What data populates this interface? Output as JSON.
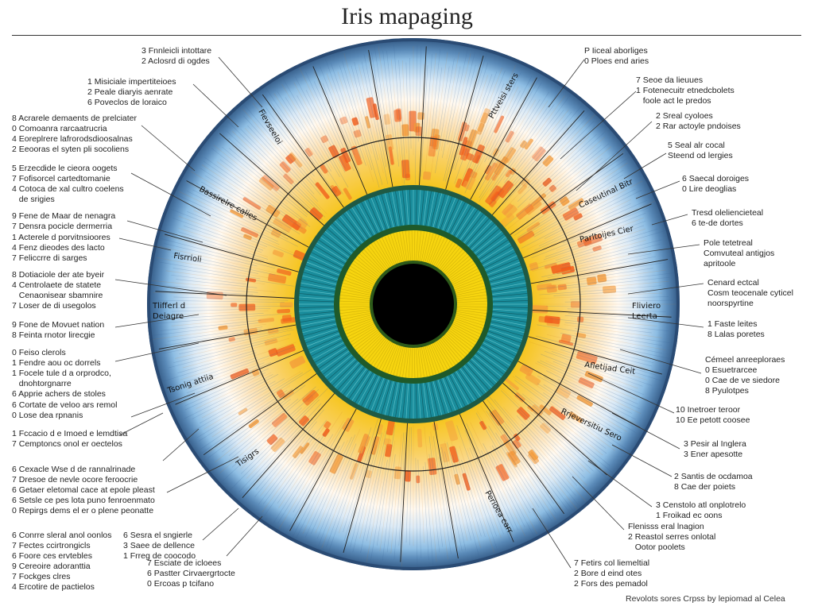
{
  "title": "Iris mapaging",
  "colors": {
    "rim": "#2f5580",
    "outer_band": "#8dbde3",
    "ciliary_zone": "#f7c520",
    "blotch": "#f05a1a",
    "collarette_teal": "#1a8d9c",
    "collarette_dark": "#1f5a2a",
    "inner_ring": "#f6d40f",
    "pupil": "#000000"
  },
  "left_labels": [
    [
      "3 Fnnleicli intottare",
      "2 Aclosrd di ogdes"
    ],
    [
      "1 Misiciale impertiteioes",
      "2 Peale diaryis aenrate",
      "6 Poveclos de loraico"
    ],
    [
      "8 Acrarele demaents de prelciater",
      "0 Comoanra rarcaatrucria",
      "4 Eoreplrere lafrorodsdioosalnas",
      "2 Eeooras el syten pli socoliens"
    ],
    [
      "5 Erzecdide le cieora oogets",
      "7 Fofisorcel cartedtomanie",
      "4 Cotoca de xal cultro coelens",
      "   de srigies"
    ],
    [
      "9 Fene de Maar de nenagra",
      "7 Densra pocicle dermerria"
    ],
    [
      "1 Acterele d porvitnsioores",
      "4 Fenz dieodes des lacto",
      "7 Feliccrre di sarges"
    ],
    [
      "8 Dotiaciole der ate byeir",
      "4 Centrolaete de statete",
      "   Cenaonisear sbamnire",
      "7 Loser de di usegolos"
    ],
    [
      "9 Fone de Movuet nation",
      "8 Feinta rnotor lirecgie"
    ],
    [
      "0 Feiso clerols",
      "1 Fendre aou oc dorrels",
      "1 Focele tule d a orprodco,",
      "   dnohtorgnarre",
      "6 Apprie achers de stoles"
    ],
    [
      "6 Cortate de veloo ars remol",
      "0 Lose dea rpnanis"
    ],
    [
      "1 Fccacio d e Imoed e lemdtisa",
      "7 Cemptoncs onol er oectelos"
    ],
    [
      "6 Cexacle Wse d de rannalrinade",
      "7 Dresoe de nevle ocore feroocrie",
      "6 Getaer eletomal cace at epole pleast",
      "6 Setsle ce pes lota puno fenroenmato",
      "0 Repirgs dems el er o plene peonatte"
    ],
    [
      "6 Conrre sleral anol oonlos",
      "7 Fectes ccirtrongicls",
      "6 Foore ces ervtebles",
      "9 Cereoire adoranttia",
      "7 Fockges clres",
      "4 Ercotire de pactielos"
    ],
    [
      "6 Sesra el sngierle",
      "3 Saee de dellence",
      "1 Frreg de coocodo"
    ],
    [
      "7 Esciate de icloees",
      "6 Pastter Cirvaergrtocte",
      "0 Ercoas p tcifano"
    ]
  ],
  "right_labels": [
    [
      "P Iiceal aborliges",
      "0 Ploes end aries"
    ],
    [
      "7 Seoe da lieuues",
      "1 Fotenecuitr etnedcbolets",
      "   foole act le predos"
    ],
    [
      "2 Sreal cyoloes",
      "2 Rar actoyle pndoises"
    ],
    [
      "5 Seal alr cocal",
      "Steend od lergies"
    ],
    [
      "6 Saecal doroiges",
      "0 Lire deoglias"
    ],
    [
      "Tresd oleliencieteal",
      "6 te-de dortes"
    ],
    [
      "Pole tetetreal",
      "Comvuteal antigjos",
      "apritoole"
    ],
    [
      "Cenard ectcal",
      "Cosm teocenale cyticel",
      "noorspyrtine"
    ],
    [
      "1 Faste leites",
      "8 Lalas poretes"
    ],
    [
      "Cémeel anreeploraes",
      "0 Esuetrarcee",
      "0 Cae de ve siedore",
      "8 Pyulotpes"
    ],
    [
      "10 Inetroer teroor",
      "10 Ee petott coosee"
    ],
    [
      "3 Pesir al Inglera",
      "3 Ener apesotte"
    ],
    [
      "2 Santis de ocdamoa",
      "8 Cae der poiets"
    ],
    [
      "3 Censtolo atl onplotrelo",
      "1 Froikad ec oons"
    ],
    [
      "Flenisss eral lnagion",
      "2 Reastol serres onlotal",
      "   Ootor poolets"
    ],
    [
      "7 Fetirs col liemeltial",
      "2 Bore d eind otes",
      "2 Fors des pemadol"
    ]
  ],
  "zone_labels": [
    "Fisrrioli",
    "Tlifferl d",
    "Deiagre",
    "Tsonig attiia",
    "Fliviero",
    "Leerta",
    "Afletijad Ceit",
    "Rrjeversitiu Sero",
    "Caseutinal Bitr",
    "Parltoijes Cier",
    "Bassirelre calies",
    "Fievseeloi",
    "Pttveisi sters",
    "Tisigrs",
    "Perioea carr"
  ],
  "footer": "Revolots sores Crpss by lepiomad al Celea"
}
